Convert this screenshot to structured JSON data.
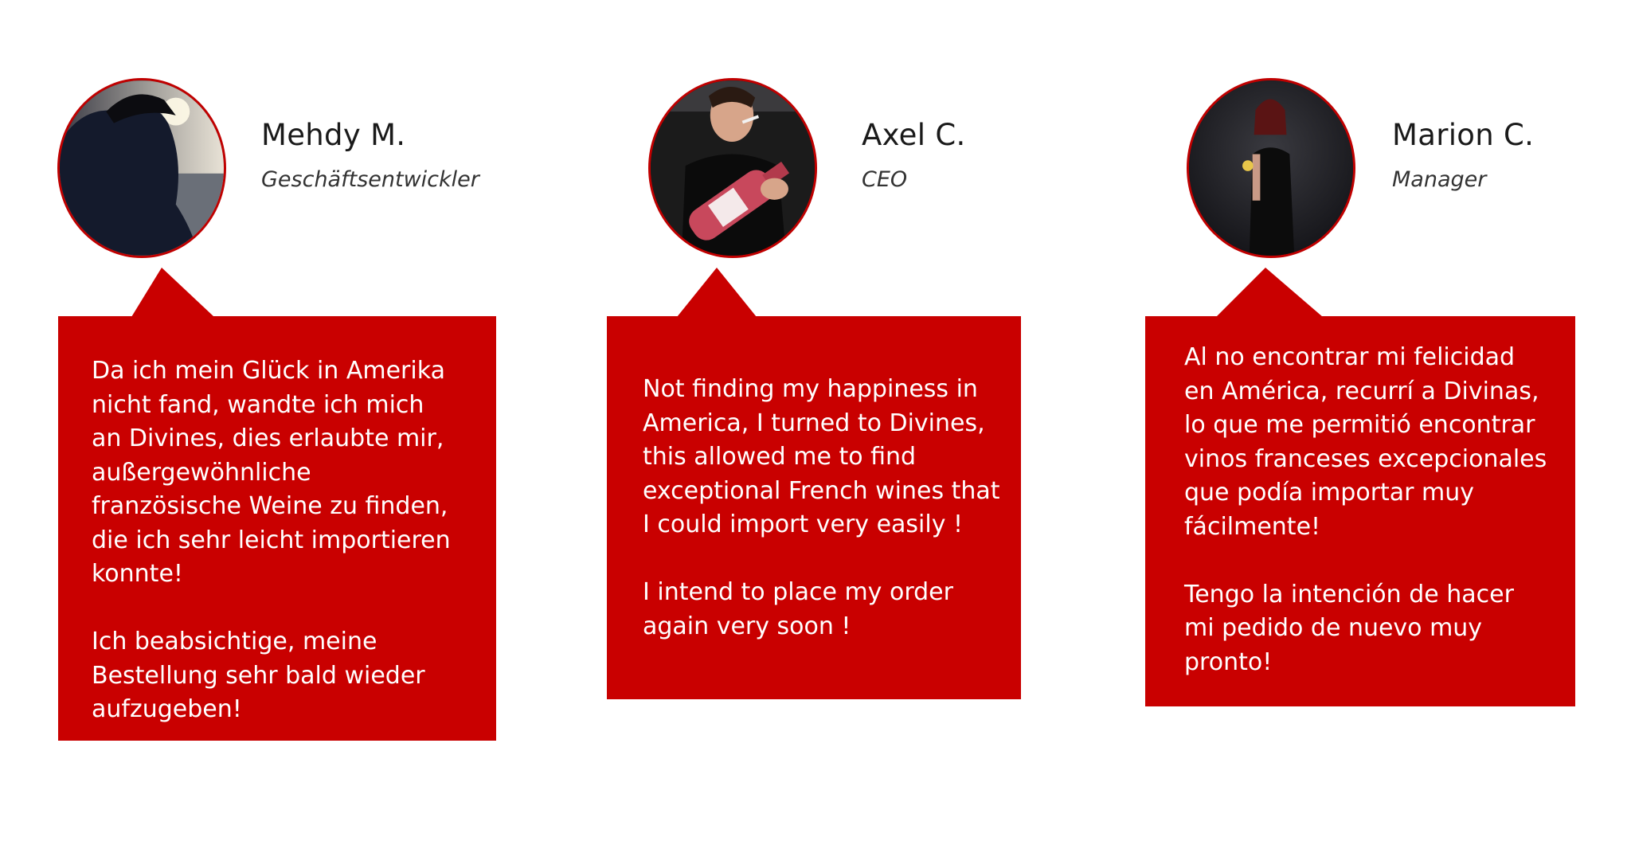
{
  "testimonials": [
    {
      "name": "Mehdy M.",
      "role": "Geschäftsentwickler",
      "quote": "Da ich mein Glück in Amerika\nnicht fand, wandte ich mich\nan Divines, dies erlaubte mir,\naußergewöhnliche\nfranzösische Weine zu finden,\ndie ich sehr leicht importieren\nkonnte!\n\nIch beabsichtige, meine\nBestellung sehr bald wieder\naufzugeben!"
    },
    {
      "name": "Axel C.",
      "role": "CEO",
      "quote": "Not finding my happiness in\nAmerica, I turned to Divines,\nthis allowed me to find\nexceptional French wines that\nI could import very easily !\n\nI intend to place my order\nagain very soon !"
    },
    {
      "name": "Marion C.",
      "role": "Manager",
      "quote": "Al no encontrar mi felicidad\nen América, recurrí a Divinas,\nlo que me permitió encontrar\nvinos franceses excepcionales\nque podía importar muy\nfácilmente!\n\nTengo la intención de hacer\nmi pedido de nuevo muy\npronto!"
    }
  ],
  "colors": {
    "accent": "#c90000",
    "avatar_border": "#c00000",
    "name_text": "#1a1a1a",
    "quote_text": "#ffffff"
  },
  "icons": [
    "avatar-photo-man-cap",
    "avatar-photo-man-bottle",
    "avatar-photo-woman"
  ]
}
